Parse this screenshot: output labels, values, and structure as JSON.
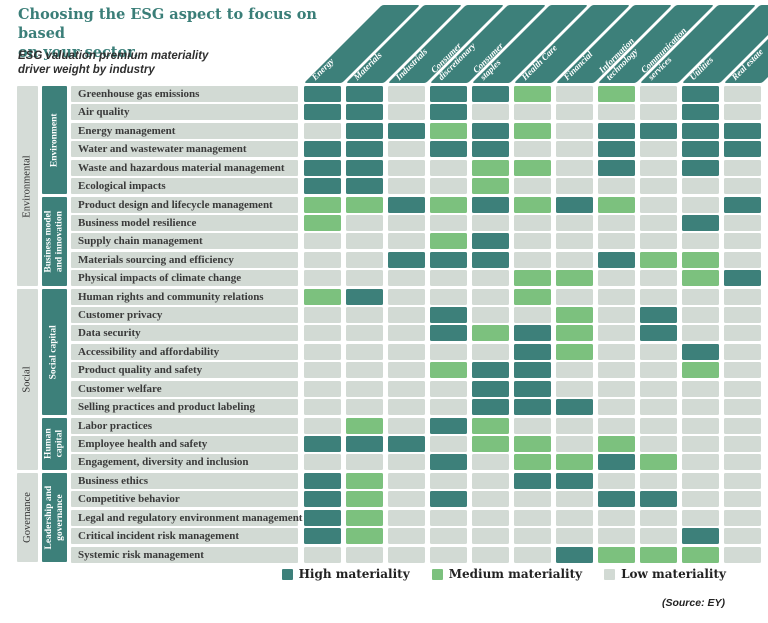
{
  "title": "Choosing the ESG aspect to focus on based\non your sector.",
  "subtitle": "ESG valuation premium materiality\ndriver weight by industry",
  "source": "(Source: EY)",
  "colors": {
    "high": "#3d807a",
    "medium": "#7cc17e",
    "low": "#d2dad4",
    "header_band": "#3d807a",
    "group_band": "#d5dcd7",
    "row_label_bg": "#d2dad4",
    "title_text": "#3a7e78"
  },
  "legend": [
    {
      "key": "H",
      "label": "High materiality",
      "color": "#3d807a"
    },
    {
      "key": "M",
      "label": "Medium materiality",
      "color": "#7cc17e"
    },
    {
      "key": "L",
      "label": "Low materiality",
      "color": "#d2dad4"
    }
  ],
  "chart_data": {
    "type": "heatmap",
    "value_meaning": {
      "H": "High materiality",
      "M": "Medium materiality",
      "L": "Low materiality"
    },
    "columns": [
      "Energy",
      "Materials",
      "Industrials",
      "Consumer\ndiscretionary",
      "Consumer\nstaples",
      "Health Care",
      "Financial",
      "Information\ntechnology",
      "Communication\nservices",
      "Utilities",
      "Real estate"
    ],
    "row_groups": [
      {
        "group": "Environmental",
        "subgroups": [
          {
            "name": "Environment",
            "rows": [
              {
                "label": "Greenhouse gas emissions",
                "values": [
                  "H",
                  "H",
                  "L",
                  "H",
                  "H",
                  "M",
                  "L",
                  "M",
                  "L",
                  "H",
                  "L"
                ]
              },
              {
                "label": "Air quality",
                "values": [
                  "H",
                  "H",
                  "L",
                  "H",
                  "L",
                  "L",
                  "L",
                  "L",
                  "L",
                  "H",
                  "L"
                ]
              },
              {
                "label": "Energy management",
                "values": [
                  "L",
                  "H",
                  "H",
                  "M",
                  "H",
                  "M",
                  "L",
                  "H",
                  "H",
                  "H",
                  "H"
                ]
              },
              {
                "label": "Water and wastewater management",
                "values": [
                  "H",
                  "H",
                  "L",
                  "H",
                  "H",
                  "L",
                  "L",
                  "H",
                  "L",
                  "H",
                  "H"
                ]
              },
              {
                "label": "Waste and hazardous material management",
                "values": [
                  "H",
                  "H",
                  "L",
                  "L",
                  "M",
                  "M",
                  "L",
                  "H",
                  "L",
                  "H",
                  "L"
                ]
              },
              {
                "label": "Ecological impacts",
                "values": [
                  "H",
                  "H",
                  "L",
                  "L",
                  "M",
                  "L",
                  "L",
                  "L",
                  "L",
                  "L",
                  "L"
                ]
              }
            ]
          },
          {
            "name": "Business model\nand innovation",
            "rows": [
              {
                "label": "Product design and lifecycle management",
                "values": [
                  "M",
                  "M",
                  "H",
                  "M",
                  "H",
                  "M",
                  "H",
                  "M",
                  "L",
                  "L",
                  "H"
                ]
              },
              {
                "label": "Business model resilience",
                "values": [
                  "M",
                  "L",
                  "L",
                  "L",
                  "L",
                  "L",
                  "L",
                  "L",
                  "L",
                  "H",
                  "L"
                ]
              },
              {
                "label": "Supply chain management",
                "values": [
                  "L",
                  "L",
                  "L",
                  "M",
                  "H",
                  "L",
                  "L",
                  "L",
                  "L",
                  "L",
                  "L"
                ]
              },
              {
                "label": "Materials sourcing and efficiency",
                "values": [
                  "L",
                  "L",
                  "H",
                  "H",
                  "H",
                  "L",
                  "L",
                  "H",
                  "M",
                  "M",
                  "L"
                ]
              },
              {
                "label": "Physical impacts of climate change",
                "values": [
                  "L",
                  "L",
                  "L",
                  "L",
                  "L",
                  "M",
                  "M",
                  "L",
                  "L",
                  "M",
                  "H"
                ]
              }
            ]
          }
        ]
      },
      {
        "group": "Social",
        "subgroups": [
          {
            "name": "Social capital",
            "rows": [
              {
                "label": "Human rights and community relations",
                "values": [
                  "M",
                  "H",
                  "L",
                  "L",
                  "L",
                  "M",
                  "L",
                  "L",
                  "L",
                  "L",
                  "L"
                ]
              },
              {
                "label": "Customer privacy",
                "values": [
                  "L",
                  "L",
                  "L",
                  "H",
                  "L",
                  "L",
                  "M",
                  "L",
                  "H",
                  "L",
                  "L"
                ]
              },
              {
                "label": "Data security",
                "values": [
                  "L",
                  "L",
                  "L",
                  "H",
                  "M",
                  "H",
                  "M",
                  "L",
                  "H",
                  "L",
                  "L"
                ]
              },
              {
                "label": "Accessibility and affordability",
                "values": [
                  "L",
                  "L",
                  "L",
                  "L",
                  "L",
                  "H",
                  "M",
                  "L",
                  "L",
                  "H",
                  "L"
                ]
              },
              {
                "label": "Product quality and safety",
                "values": [
                  "L",
                  "L",
                  "L",
                  "M",
                  "H",
                  "H",
                  "L",
                  "L",
                  "L",
                  "M",
                  "L"
                ]
              },
              {
                "label": "Customer welfare",
                "values": [
                  "L",
                  "L",
                  "L",
                  "L",
                  "H",
                  "H",
                  "L",
                  "L",
                  "L",
                  "L",
                  "L"
                ]
              },
              {
                "label": "Selling practices and product labeling",
                "values": [
                  "L",
                  "L",
                  "L",
                  "L",
                  "H",
                  "H",
                  "H",
                  "L",
                  "L",
                  "L",
                  "L"
                ]
              }
            ]
          },
          {
            "name": "Human\ncapital",
            "rows": [
              {
                "label": "Labor practices",
                "values": [
                  "L",
                  "M",
                  "L",
                  "H",
                  "M",
                  "L",
                  "L",
                  "L",
                  "L",
                  "L",
                  "L"
                ]
              },
              {
                "label": "Employee health and safety",
                "values": [
                  "H",
                  "H",
                  "H",
                  "L",
                  "M",
                  "M",
                  "L",
                  "M",
                  "L",
                  "L",
                  "L"
                ]
              },
              {
                "label": "Engagement, diversity and inclusion",
                "values": [
                  "L",
                  "L",
                  "L",
                  "H",
                  "L",
                  "M",
                  "M",
                  "H",
                  "M",
                  "L",
                  "L"
                ]
              }
            ]
          }
        ]
      },
      {
        "group": "Governance",
        "subgroups": [
          {
            "name": "Leadership and\ngovernance",
            "rows": [
              {
                "label": "Business ethics",
                "values": [
                  "H",
                  "M",
                  "L",
                  "L",
                  "L",
                  "H",
                  "H",
                  "L",
                  "L",
                  "L",
                  "L"
                ]
              },
              {
                "label": "Competitive behavior",
                "values": [
                  "H",
                  "M",
                  "L",
                  "H",
                  "L",
                  "L",
                  "L",
                  "H",
                  "H",
                  "L",
                  "L"
                ]
              },
              {
                "label": "Legal and regulatory environment management",
                "values": [
                  "H",
                  "M",
                  "L",
                  "L",
                  "L",
                  "L",
                  "L",
                  "L",
                  "L",
                  "L",
                  "L"
                ]
              },
              {
                "label": "Critical incident risk management",
                "values": [
                  "H",
                  "M",
                  "L",
                  "L",
                  "L",
                  "L",
                  "L",
                  "L",
                  "L",
                  "H",
                  "L"
                ]
              },
              {
                "label": "Systemic risk management",
                "values": [
                  "L",
                  "L",
                  "L",
                  "L",
                  "L",
                  "L",
                  "H",
                  "M",
                  "M",
                  "M",
                  "L"
                ]
              }
            ]
          }
        ]
      }
    ]
  }
}
